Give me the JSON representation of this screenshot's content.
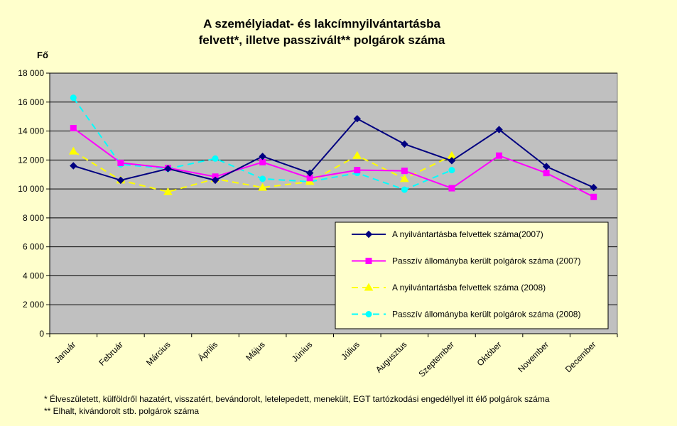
{
  "chart_data": {
    "type": "line",
    "title_lines": [
      "A személyiadat- és lakcímnyilvántartásba",
      "felvett*, illetve passzivált** polgárok száma"
    ],
    "ylabel": "Fő",
    "xlabel": "",
    "ylim": [
      0,
      18000
    ],
    "yticks": [
      0,
      2000,
      4000,
      6000,
      8000,
      10000,
      12000,
      14000,
      16000,
      18000
    ],
    "ytick_labels": [
      "0",
      "2 000",
      "4 000",
      "6 000",
      "8 000",
      "10 000",
      "12 000",
      "14 000",
      "16 000",
      "18 000"
    ],
    "categories": [
      "Január",
      "Február",
      "Március",
      "Április",
      "Május",
      "Június",
      "Július",
      "Augusztus",
      "Szeptember",
      "Október",
      "November",
      "December"
    ],
    "grid": true,
    "plot_background": "#c0c0c0",
    "page_background": "#ffffcc",
    "legend_position": "bottom-right inside plot",
    "series": [
      {
        "name": "A nyilvántartásba felvettek száma(2007)",
        "color": "#000080",
        "marker": "diamond",
        "dash": "solid",
        "values": [
          11600,
          10600,
          11400,
          10600,
          12250,
          11100,
          14850,
          13100,
          11950,
          14100,
          11550,
          10100
        ]
      },
      {
        "name": "Passzív állományba került polgárok száma (2007)",
        "color": "#ff00ff",
        "marker": "square",
        "dash": "solid",
        "values": [
          14200,
          11800,
          11450,
          10850,
          11850,
          10750,
          11300,
          11250,
          10050,
          12300,
          11100,
          9450
        ]
      },
      {
        "name": "A nyilvántartásba felvettek száma (2008)",
        "color": "#ffff00",
        "marker": "triangle",
        "dash": "dashed",
        "values": [
          12600,
          10600,
          9800,
          10700,
          10100,
          10500,
          12300,
          10700,
          12300,
          null,
          null,
          null
        ]
      },
      {
        "name": "Passzív állományba került polgárok száma (2008)",
        "color": "#00ffff",
        "marker": "circle",
        "dash": "dashed",
        "values": [
          16300,
          11700,
          11400,
          12100,
          10700,
          10500,
          11100,
          9950,
          11300,
          null,
          null,
          null
        ]
      }
    ]
  },
  "footnotes": [
    "* Élveszületett, külföldről hazatért, visszatért, bevándorolt, letelepedett, menekült, EGT tartózkodási engedéllyel itt élő  polgárok száma",
    "** Elhalt, kivándorolt stb. polgárok száma"
  ]
}
